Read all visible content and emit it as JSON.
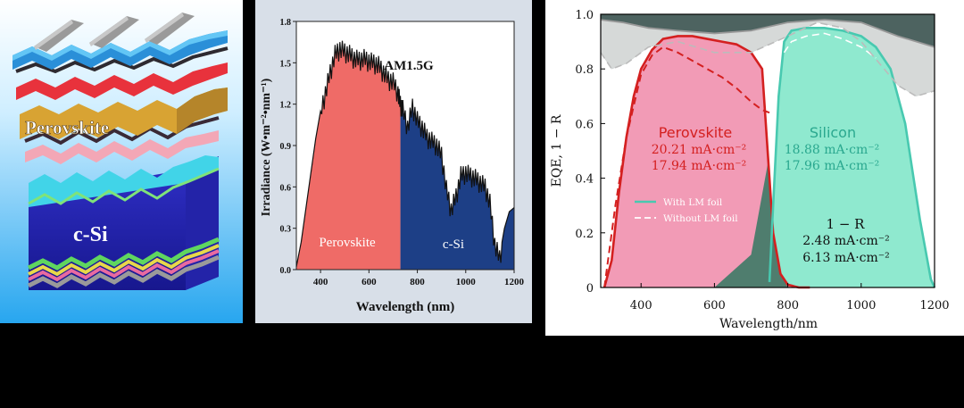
{
  "colors": {
    "perovskite_fill": "#ef6b67",
    "csi_fill": "#1d3f86",
    "eqe_red": "#d42020",
    "eqe_red_fill": "#f29bb6",
    "eqe_teal": "#48c9b0",
    "eqe_teal_fill": "#8fe9cf",
    "reflect_dark": "#4d6360",
    "panel_bg": "#ffffff",
    "mid_bg": "#d8dfe8",
    "left_bg_top": "#ffffff",
    "left_bg_bottom": "#27a6ef"
  },
  "left_panel": {
    "perovskite_label": "Perovskite",
    "csi_label": "c-Si"
  },
  "chart_data": [
    {
      "type": "area",
      "title": "AM1.5G",
      "xlabel": "Wavelength (nm)",
      "ylabel": "Irradiance (W•m⁻²•nm⁻¹)",
      "xlim": [
        300,
        1200
      ],
      "ylim": [
        0,
        1.8
      ],
      "x_ticks": [
        "400",
        "600",
        "800",
        "1000",
        "1200"
      ],
      "y_ticks": [
        "0.0",
        "0.3",
        "0.6",
        "0.9",
        "1.2",
        "1.5",
        "1.8"
      ],
      "split_wavelength": 730,
      "region_labels": [
        "Perovskite",
        "c-Si"
      ],
      "series": [
        {
          "name": "AM1.5G spectrum",
          "x": [
            300,
            320,
            340,
            360,
            380,
            400,
            420,
            440,
            460,
            480,
            500,
            520,
            540,
            560,
            580,
            600,
            620,
            640,
            660,
            680,
            700,
            720,
            730,
            740,
            760,
            780,
            800,
            820,
            840,
            860,
            880,
            900,
            920,
            940,
            960,
            980,
            1000,
            1020,
            1040,
            1060,
            1080,
            1100,
            1120,
            1140,
            1160,
            1180,
            1200
          ],
          "values": [
            0.02,
            0.2,
            0.45,
            0.7,
            0.95,
            1.15,
            1.3,
            1.45,
            1.58,
            1.62,
            1.6,
            1.58,
            1.55,
            1.54,
            1.55,
            1.53,
            1.52,
            1.5,
            1.45,
            1.4,
            1.38,
            1.3,
            1.22,
            1.18,
            1.05,
            1.2,
            1.1,
            1.05,
            0.98,
            0.95,
            0.92,
            0.85,
            0.6,
            0.45,
            0.55,
            0.7,
            0.72,
            0.7,
            0.68,
            0.65,
            0.62,
            0.5,
            0.2,
            0.1,
            0.3,
            0.42,
            0.45
          ]
        }
      ]
    },
    {
      "type": "line",
      "xlabel": "Wavelength/nm",
      "ylabel": "EQE, 1 − R",
      "xlim": [
        290,
        1200
      ],
      "ylim": [
        0,
        1.0
      ],
      "x_ticks": [
        "400",
        "600",
        "800",
        "1000",
        "1200"
      ],
      "y_ticks": [
        "0",
        "0.2",
        "0.4",
        "0.6",
        "0.8",
        "1.0"
      ],
      "legend_position": "lower-left",
      "legend": [
        "With LM foil",
        "Without LM foil"
      ],
      "annotations": {
        "perovskite_title": "Perovskite",
        "perovskite_with": "20.21 mA·cm⁻²",
        "perovskite_without": "17.94 mA·cm⁻²",
        "silicon_title": "Silicon",
        "silicon_with": "18.88 mA·cm⁻²",
        "silicon_without": "17.96 mA·cm⁻²",
        "reflect_title": "1 − R",
        "reflect_with": "2.48 mA·cm⁻²",
        "reflect_without": "6.13 mA·cm⁻²"
      },
      "series": [
        {
          "name": "Perovskite EQE (with LM foil)",
          "style": "solid",
          "x": [
            300,
            320,
            340,
            360,
            380,
            400,
            430,
            460,
            500,
            540,
            580,
            620,
            660,
            700,
            730,
            745,
            760,
            780,
            800,
            830,
            860
          ],
          "values": [
            0.0,
            0.1,
            0.35,
            0.55,
            0.7,
            0.8,
            0.87,
            0.91,
            0.92,
            0.92,
            0.91,
            0.9,
            0.89,
            0.86,
            0.8,
            0.5,
            0.2,
            0.05,
            0.01,
            0.0,
            0.0
          ]
        },
        {
          "name": "Perovskite EQE (without LM foil)",
          "style": "dashed",
          "x": [
            300,
            330,
            360,
            400,
            430,
            460,
            500,
            540,
            580,
            620,
            660,
            700,
            730,
            750
          ],
          "values": [
            0.0,
            0.3,
            0.55,
            0.78,
            0.85,
            0.88,
            0.86,
            0.83,
            0.8,
            0.77,
            0.73,
            0.68,
            0.65,
            0.64
          ]
        },
        {
          "name": "Silicon EQE (with LM foil)",
          "style": "solid",
          "x": [
            750,
            760,
            775,
            790,
            810,
            850,
            900,
            950,
            1000,
            1040,
            1080,
            1120,
            1160,
            1190,
            1200
          ],
          "values": [
            0.02,
            0.3,
            0.7,
            0.9,
            0.94,
            0.95,
            0.95,
            0.94,
            0.92,
            0.88,
            0.8,
            0.6,
            0.25,
            0.03,
            0.0
          ]
        },
        {
          "name": "Silicon EQE (without LM foil)",
          "style": "dashed",
          "x": [
            790,
            810,
            850,
            900,
            950,
            1000,
            1040
          ],
          "values": [
            0.86,
            0.9,
            0.92,
            0.93,
            0.91,
            0.88,
            0.84
          ]
        },
        {
          "name": "Total absorption 1-R (with LM foil)",
          "style": "solid",
          "x": [
            290,
            350,
            420,
            500,
            600,
            700,
            800,
            900,
            1000,
            1100,
            1200
          ],
          "values": [
            0.98,
            0.97,
            0.95,
            0.94,
            0.93,
            0.94,
            0.97,
            0.98,
            0.97,
            0.92,
            0.88
          ]
        },
        {
          "name": "Total absorption 1-R (without LM foil)",
          "style": "dashed",
          "x": [
            290,
            320,
            360,
            420,
            500,
            600,
            700,
            800,
            880,
            950,
            1000,
            1050,
            1100,
            1150,
            1200
          ],
          "values": [
            0.86,
            0.8,
            0.82,
            0.88,
            0.9,
            0.86,
            0.86,
            0.92,
            0.97,
            0.95,
            0.9,
            0.82,
            0.74,
            0.7,
            0.72
          ]
        }
      ]
    }
  ]
}
